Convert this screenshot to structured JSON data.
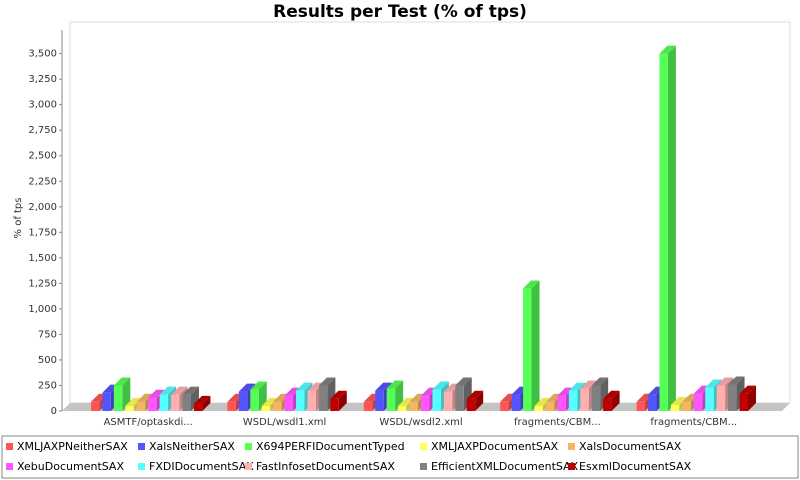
{
  "chart_data": {
    "type": "bar3d",
    "title": "Results per Test (% of tps)",
    "y_label": "% of tps",
    "categories": [
      "ASMTF/optaskdi...",
      "WSDL/wsdl1.xml",
      "WSDL/wsdl2.xml",
      "fragments/CBM...",
      "fragments/CBM..."
    ],
    "series": [
      {
        "name": "XMLJAXPNeitherSAX",
        "color": "#ff5555",
        "values": [
          90,
          90,
          90,
          90,
          90
        ]
      },
      {
        "name": "XalsNeitherSAX",
        "color": "#5555ff",
        "values": [
          180,
          190,
          200,
          160,
          160
        ]
      },
      {
        "name": "X694PERFIDocumentTyped",
        "color": "#55ff55",
        "values": [
          250,
          210,
          220,
          1200,
          3500
        ]
      },
      {
        "name": "XMLJAXPDocumentSAX",
        "color": "#ffff55",
        "values": [
          50,
          50,
          50,
          50,
          60
        ]
      },
      {
        "name": "XalsDocumentSAX",
        "color": "#f5b563",
        "values": [
          90,
          90,
          90,
          90,
          90
        ]
      },
      {
        "name": "XebuDocumentSAX",
        "color": "#ff55ff",
        "values": [
          130,
          150,
          150,
          150,
          170
        ]
      },
      {
        "name": "FXDIDocumentSAX",
        "color": "#55ffff",
        "values": [
          160,
          200,
          210,
          200,
          230
        ]
      },
      {
        "name": "FastInfosetDocumentSAX",
        "color": "#ffafaf",
        "values": [
          160,
          200,
          190,
          220,
          250
        ]
      },
      {
        "name": "EfficientXMLDocumentSAX",
        "color": "#808080",
        "values": [
          160,
          250,
          250,
          250,
          260
        ]
      },
      {
        "name": "EsxmlDocumentSAX",
        "color": "#c00000",
        "values": [
          70,
          120,
          120,
          120,
          170
        ]
      }
    ],
    "ylim": [
      0,
      3800
    ],
    "yticks": [
      0,
      250,
      500,
      750,
      {
        "value": 1000,
        "label": "1,000"
      },
      {
        "value": 1250,
        "label": "1,250"
      },
      {
        "value": 1500,
        "label": "1,500"
      },
      {
        "value": 1750,
        "label": "1,750"
      },
      {
        "value": 2000,
        "label": "2,000"
      },
      {
        "value": 2250,
        "label": "2,250"
      },
      {
        "value": 2500,
        "label": "2,500"
      },
      {
        "value": 2750,
        "label": "2,750"
      },
      {
        "value": 3000,
        "label": "3,000"
      },
      {
        "value": 3250,
        "label": "3,250"
      },
      {
        "value": 3500,
        "label": "3,500"
      }
    ],
    "legend": "bottom"
  }
}
